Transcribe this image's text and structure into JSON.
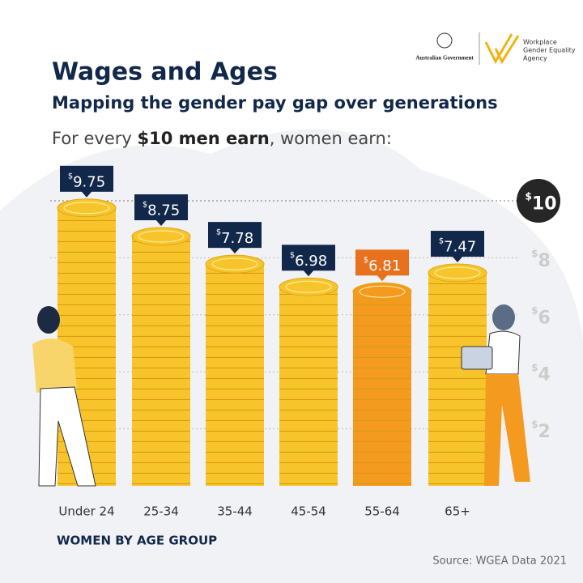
{
  "chart_data": {
    "type": "bar",
    "title": "Wages and Ages",
    "subtitle": "Mapping the gender pay gap over generations",
    "intro": [
      "For every ",
      "$10 men earn",
      ", women earn:"
    ],
    "x_label": "WOMEN BY AGE GROUP",
    "source": "Source: WGEA Data 2021",
    "logos": [
      "Australian Government",
      "Workplace",
      "Gender Equality",
      "Agency"
    ],
    "categories": [
      "Under 24",
      "25-34",
      "35-44",
      "45-54",
      "55-64",
      "65+"
    ],
    "values": [
      9.75,
      8.75,
      7.78,
      6.98,
      6.81,
      7.47
    ],
    "value_labels": [
      "$9.75",
      "$8.75",
      "$7.78",
      "$6.98",
      "$6.81",
      "$7.47"
    ],
    "colors": [
      "#f7c52b",
      "#f7c52b",
      "#f7c52b",
      "#f7c52b",
      "#f39a1f",
      "#f7c52b"
    ],
    "label_colors": [
      "#12284a",
      "#12284a",
      "#12284a",
      "#12284a",
      "#e8711d",
      "#12284a"
    ],
    "ylim": [
      0,
      10
    ],
    "yticks": [
      {
        "value": 2,
        "label": "$2"
      },
      {
        "value": 4,
        "label": "$4"
      },
      {
        "value": 6,
        "label": "$6"
      },
      {
        "value": 8,
        "label": "$8"
      },
      {
        "value": 10,
        "label": "$10"
      }
    ],
    "grid": true
  }
}
